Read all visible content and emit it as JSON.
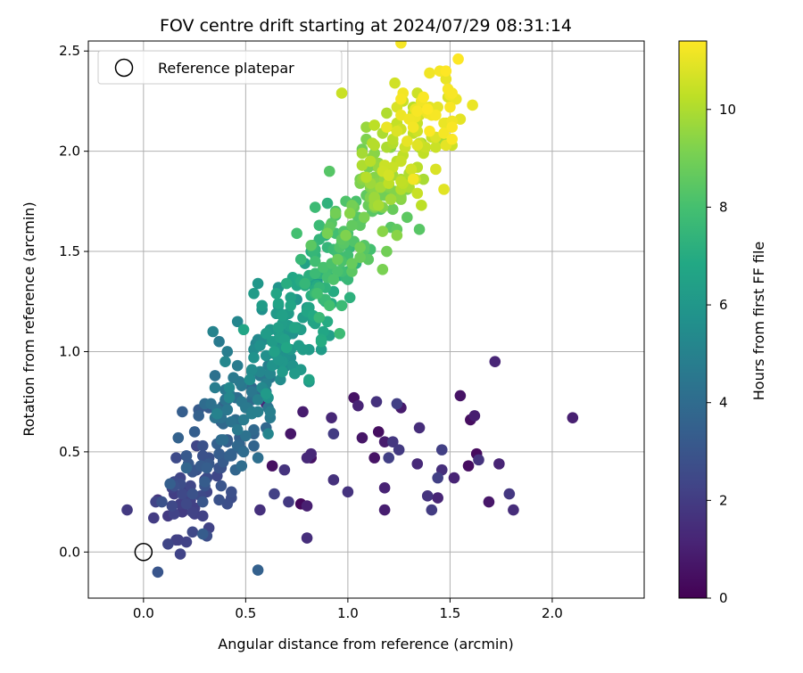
{
  "chart_data": {
    "type": "scatter",
    "title": "FOV centre drift starting at 2024/07/29 08:31:14",
    "xlabel": "Angular distance from reference (arcmin)",
    "ylabel": "Rotation from reference (arcmin)",
    "xlim": [
      -0.27,
      2.45
    ],
    "ylim": [
      -0.23,
      2.55
    ],
    "xticks": [
      0.0,
      0.5,
      1.0,
      1.5,
      2.0
    ],
    "xtick_labels": [
      "0.0",
      "0.5",
      "1.0",
      "1.5",
      "2.0"
    ],
    "yticks": [
      0.0,
      0.5,
      1.0,
      1.5,
      2.0,
      2.5
    ],
    "ytick_labels": [
      "0.0",
      "0.5",
      "1.0",
      "1.5",
      "2.0",
      "2.5"
    ],
    "grid": true,
    "legend": {
      "position": "top-left",
      "entries": [
        {
          "label": "Reference platepar",
          "marker": "open-circle",
          "x": 0.0,
          "y": 0.0
        }
      ]
    },
    "colorbar": {
      "label": "Hours from first FF file",
      "colormap": "viridis",
      "range": [
        0,
        11.4
      ],
      "ticks": [
        0,
        2,
        4,
        6,
        8,
        10
      ],
      "tick_labels": [
        "0",
        "2",
        "4",
        "6",
        "8",
        "10"
      ]
    },
    "reference_point": {
      "x": 0.0,
      "y": 0.0
    },
    "points": []
  }
}
